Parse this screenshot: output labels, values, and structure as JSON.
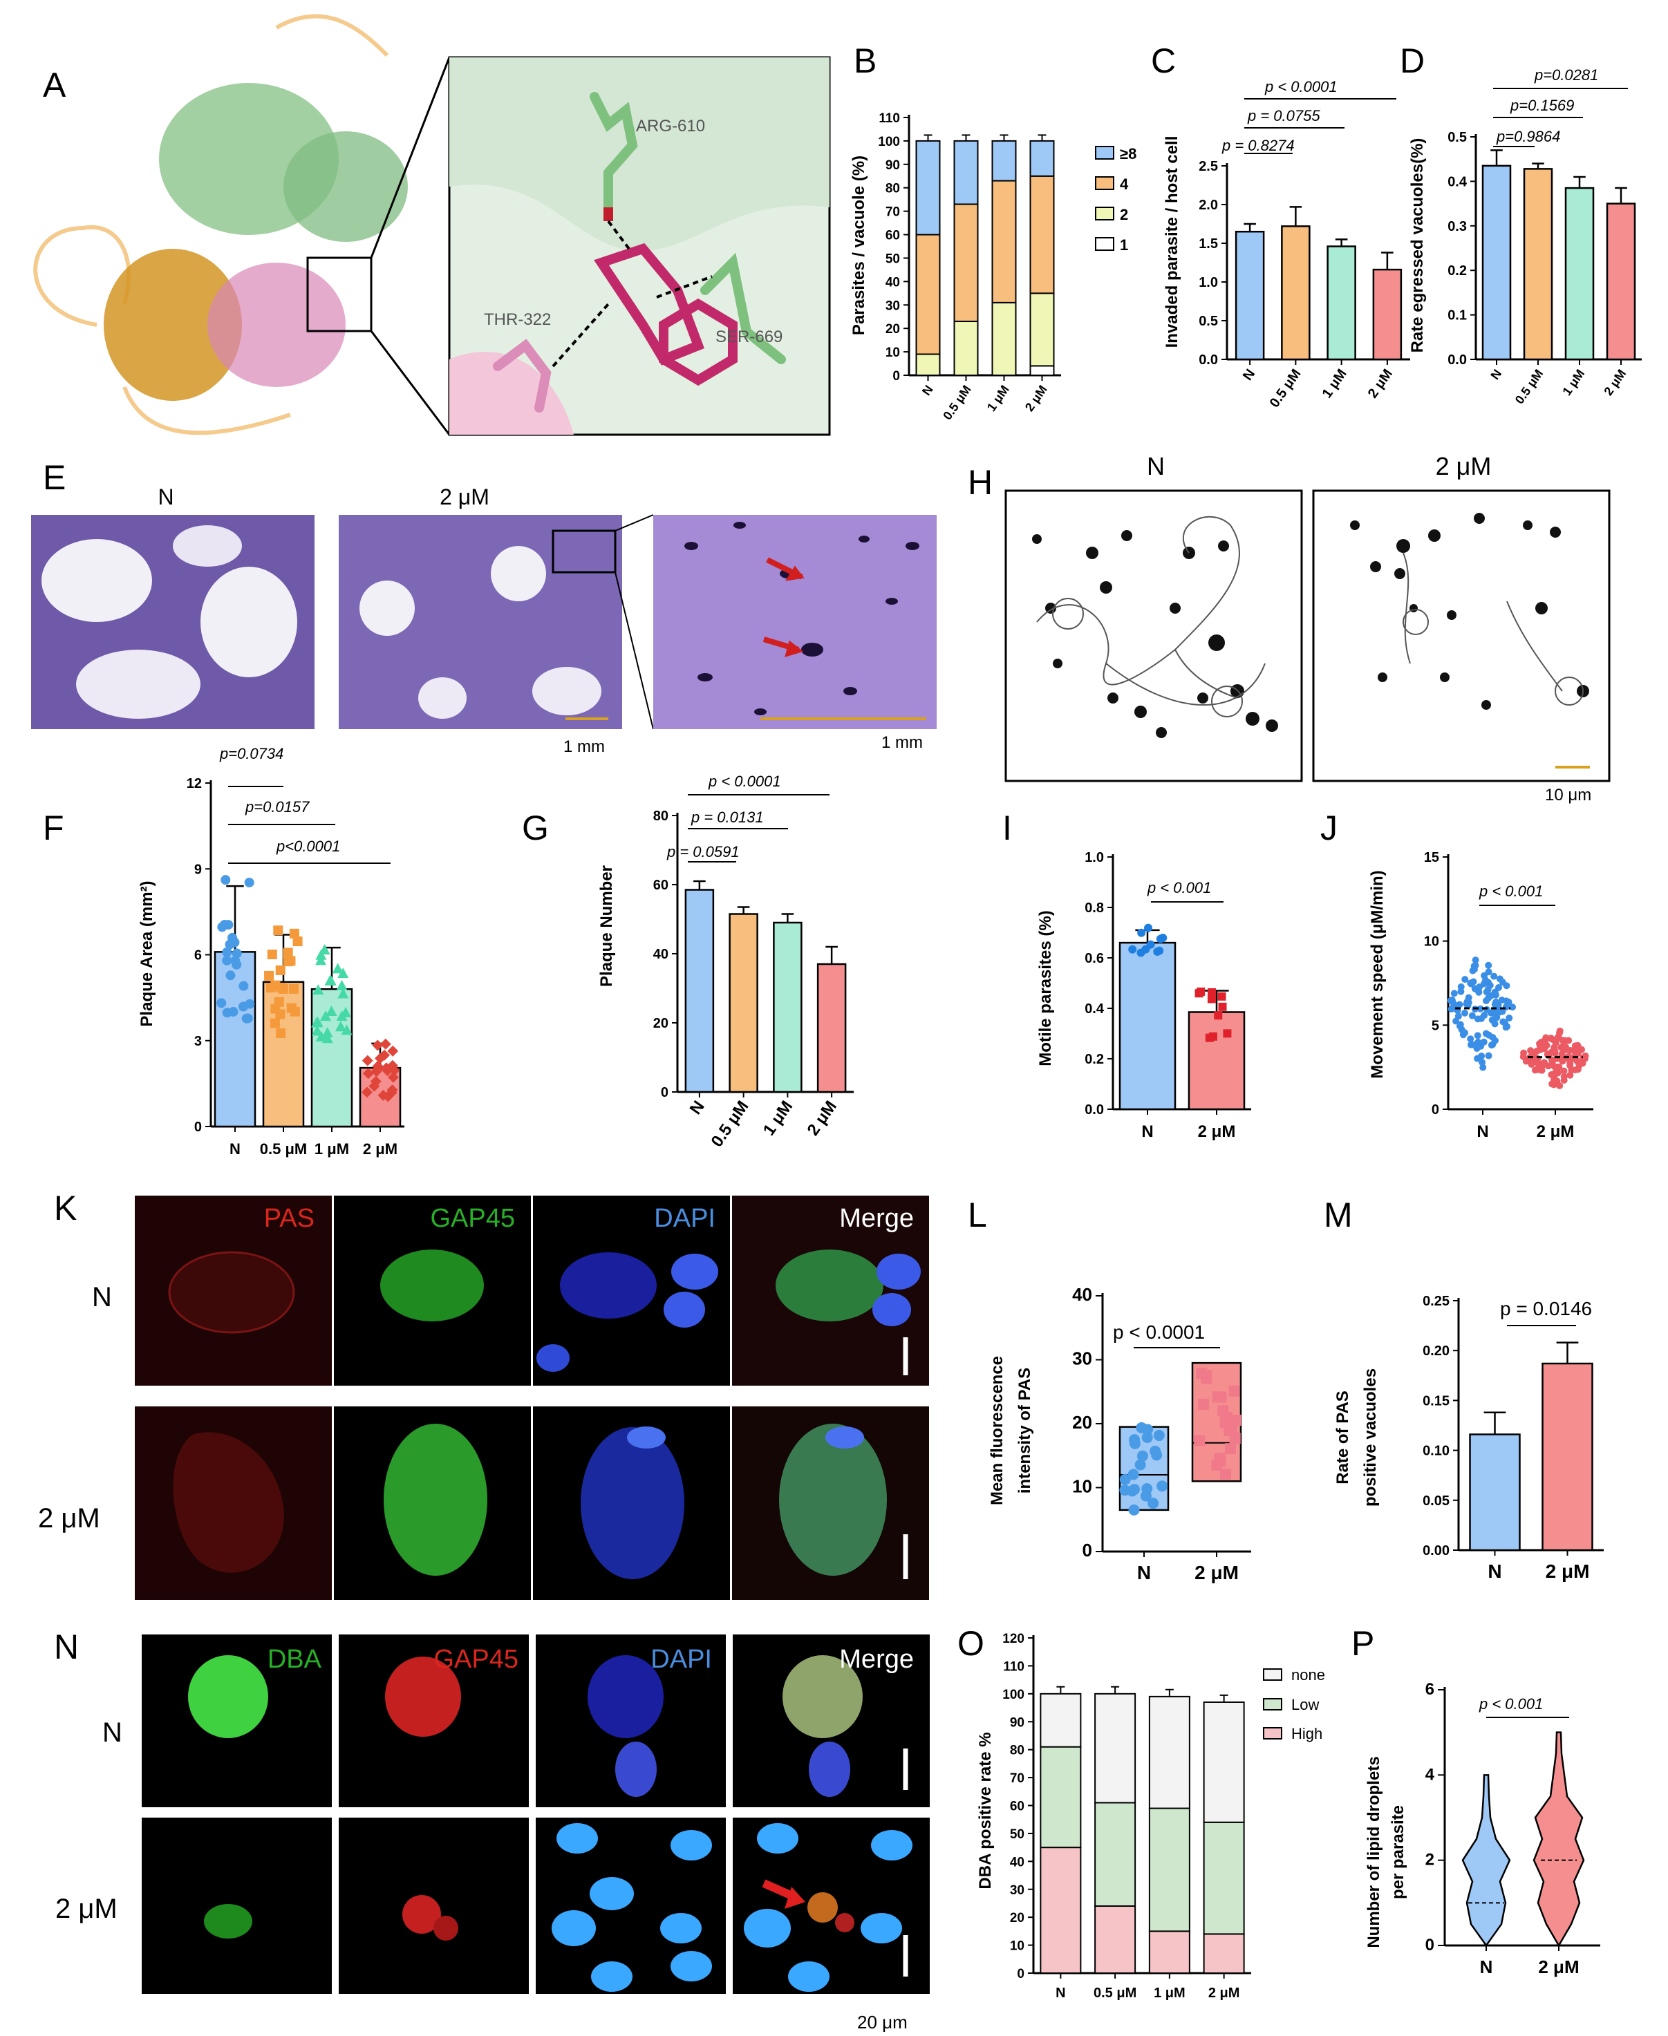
{
  "panels": {
    "A": {
      "letter": "A",
      "residues": [
        "ARG-610",
        "THR-322",
        "SER-669"
      ]
    },
    "B": {
      "letter": "B",
      "ylabel": "Parasites / vacuole (%)",
      "yticks": [
        "0",
        "10",
        "20",
        "30",
        "40",
        "50",
        "60",
        "70",
        "80",
        "90",
        "100",
        "110"
      ],
      "categories": [
        "N",
        "0.5 μM",
        "1 μM",
        "2 μM"
      ],
      "legend": [
        "≥8",
        "4",
        "2",
        "1"
      ]
    },
    "C": {
      "letter": "C",
      "ylabel": "Invaded parasite / host cell",
      "yticks": [
        "0.0",
        "0.5",
        "1.0",
        "1.5",
        "2.0",
        "2.5"
      ],
      "categories": [
        "N",
        "0.5 μM",
        "1 μM",
        "2 μM"
      ],
      "pvals": [
        "p = 0.8274",
        "p = 0.0755",
        "p < 0.0001"
      ]
    },
    "D": {
      "letter": "D",
      "ylabel": "Rate egressed vacuoles(%)",
      "yticks": [
        "0.0",
        "0.1",
        "0.2",
        "0.3",
        "0.4",
        "0.5"
      ],
      "categories": [
        "N",
        "0.5 μM",
        "1 μM",
        "2 μM"
      ],
      "pvals": [
        "p=0.9864",
        "p=0.1569",
        "p=0.0281"
      ]
    },
    "E": {
      "letter": "E",
      "titles": [
        "N",
        "2 μM"
      ],
      "scales": [
        "1 mm",
        "1 mm"
      ]
    },
    "F": {
      "letter": "F",
      "ylabel": "Plaque Area (mm²)",
      "yticks": [
        "0",
        "3",
        "6",
        "9",
        "12"
      ],
      "categories": [
        "N",
        "0.5 μM",
        "1 μM",
        "2 μM"
      ],
      "pvals": [
        "p=0.0734",
        "p=0.0157",
        "p<0.0001"
      ]
    },
    "G": {
      "letter": "G",
      "ylabel": "Plaque Number",
      "yticks": [
        "0",
        "20",
        "40",
        "60",
        "80"
      ],
      "categories": [
        "N",
        "0.5 μM",
        "1 μM",
        "2 μM"
      ],
      "pvals": [
        "p = 0.0591",
        "p = 0.0131",
        "p < 0.0001"
      ]
    },
    "H": {
      "letter": "H",
      "titles": [
        "N",
        "2 μM"
      ],
      "scale": "10 μm"
    },
    "I": {
      "letter": "I",
      "ylabel": "Motile parasites (%)",
      "yticks": [
        "0.0",
        "0.2",
        "0.4",
        "0.6",
        "0.8",
        "1.0"
      ],
      "categories": [
        "N",
        "2 μM"
      ],
      "pval": "p < 0.001"
    },
    "J": {
      "letter": "J",
      "ylabel": "Movement speed (μM/min)",
      "yticks": [
        "0",
        "5",
        "10",
        "15"
      ],
      "categories": [
        "N",
        "2 μM"
      ],
      "pval": "p < 0.001"
    },
    "K": {
      "letter": "K",
      "channels": [
        "PAS",
        "GAP45",
        "DAPI",
        "Merge"
      ],
      "rows": [
        "N",
        "2 μM"
      ]
    },
    "L": {
      "letter": "L",
      "ylabel1": "Mean fluorescence",
      "ylabel2": "intensity of PAS",
      "yticks": [
        "0",
        "10",
        "20",
        "30",
        "40"
      ],
      "categories": [
        "N",
        "2 μM"
      ],
      "pval": "p < 0.0001"
    },
    "M": {
      "letter": "M",
      "ylabel1": "Rate of PAS",
      "ylabel2": "positive vacuoles",
      "yticks": [
        "0.00",
        "0.05",
        "0.10",
        "0.15",
        "0.20",
        "0.25"
      ],
      "categories": [
        "N",
        "2 μM"
      ],
      "pval": "p = 0.0146"
    },
    "N": {
      "letter": "N",
      "channels": [
        "DBA",
        "GAP45",
        "DAPI",
        "Merge"
      ],
      "rows": [
        "N",
        "2 μM"
      ],
      "scale": "20 μm"
    },
    "O": {
      "letter": "O",
      "ylabel": "DBA positive rate %",
      "yticks": [
        "0",
        "10",
        "20",
        "30",
        "40",
        "50",
        "60",
        "70",
        "80",
        "90",
        "100",
        "110",
        "120"
      ],
      "categories": [
        "N",
        "0.5 μM",
        "1 μM",
        "2 μM"
      ],
      "legend": [
        "none",
        "Low",
        "High"
      ]
    },
    "P": {
      "letter": "P",
      "ylabel1": "Number of lipid droplets",
      "ylabel2": "per parasite",
      "yticks": [
        "0",
        "2",
        "4",
        "6"
      ],
      "categories": [
        "N",
        "2 μM"
      ],
      "pval": "p < 0.001"
    }
  },
  "colors": {
    "blue": "#9ec8f5",
    "orange": "#f8be7e",
    "green": "#a9ebd4",
    "red": "#f58f8f",
    "yellow": "#f0f6b5",
    "lightgreen": "#cfe8cd",
    "pink": "#f6c3c6",
    "grey": "#f3f3f3"
  },
  "chart_data": [
    {
      "panel": "B",
      "type": "bar",
      "stacked": true,
      "categories": [
        "N",
        "0.5 μM",
        "1 μM",
        "2 μM"
      ],
      "ylabel": "Parasites / vacuole (%)",
      "ylim": [
        0,
        110
      ],
      "series": [
        {
          "name": "1",
          "values": [
            0,
            0,
            0,
            4
          ]
        },
        {
          "name": "2",
          "values": [
            9,
            23,
            31,
            31
          ]
        },
        {
          "name": "4",
          "values": [
            51,
            50,
            52,
            50
          ]
        },
        {
          "name": "≥8",
          "values": [
            40,
            27,
            17,
            15
          ]
        }
      ]
    },
    {
      "panel": "C",
      "type": "bar",
      "categories": [
        "N",
        "0.5 μM",
        "1 μM",
        "2 μM"
      ],
      "ylabel": "Invaded parasite / host cell",
      "ylim": [
        0,
        2.5
      ],
      "values": [
        1.65,
        1.72,
        1.46,
        1.16
      ],
      "errors": [
        0.1,
        0.25,
        0.09,
        0.22
      ]
    },
    {
      "panel": "D",
      "type": "bar",
      "categories": [
        "N",
        "0.5 μM",
        "1 μM",
        "2 μM"
      ],
      "ylabel": "Rate egressed vacuoles(%)",
      "ylim": [
        0,
        0.5
      ],
      "values": [
        0.435,
        0.428,
        0.385,
        0.35
      ],
      "errors": [
        0.035,
        0.012,
        0.025,
        0.035
      ]
    },
    {
      "panel": "F",
      "type": "bar",
      "categories": [
        "N",
        "0.5 μM",
        "1 μM",
        "2 μM"
      ],
      "ylabel": "Plaque Area (mm²)",
      "ylim": [
        0,
        12
      ],
      "values": [
        6.1,
        5.05,
        4.8,
        2.05
      ],
      "errors": [
        2.3,
        1.65,
        1.45,
        0.85
      ]
    },
    {
      "panel": "G",
      "type": "bar",
      "categories": [
        "N",
        "0.5 μM",
        "1 μM",
        "2 μM"
      ],
      "ylabel": "Plaque Number",
      "ylim": [
        0,
        80
      ],
      "values": [
        58.5,
        51.5,
        49,
        37
      ],
      "errors": [
        2.5,
        2,
        2.5,
        5
      ]
    },
    {
      "panel": "I",
      "type": "bar",
      "categories": [
        "N",
        "2 μM"
      ],
      "ylabel": "Motile parasites (%)",
      "ylim": [
        0,
        1.0
      ],
      "values": [
        0.66,
        0.385
      ],
      "errors": [
        0.05,
        0.085
      ]
    },
    {
      "panel": "J",
      "type": "scatter",
      "categories": [
        "N",
        "2 μM"
      ],
      "ylabel": "Movement speed (μM/min)",
      "ylim": [
        0,
        15
      ],
      "means": [
        6.0,
        3.1
      ]
    },
    {
      "panel": "L",
      "type": "box",
      "categories": [
        "N",
        "2 μM"
      ],
      "ylabel": "Mean fluorescence intensity of PAS",
      "ylim": [
        0,
        40
      ],
      "box": [
        [
          6.5,
          12,
          19.5
        ],
        [
          11,
          17,
          29.5
        ]
      ]
    },
    {
      "panel": "M",
      "type": "bar",
      "categories": [
        "N",
        "2 μM"
      ],
      "ylabel": "Rate of PAS positive vacuoles",
      "ylim": [
        0,
        0.25
      ],
      "values": [
        0.116,
        0.187
      ],
      "errors": [
        0.022,
        0.021
      ]
    },
    {
      "panel": "O",
      "type": "bar",
      "stacked": true,
      "categories": [
        "N",
        "0.5 μM",
        "1 μM",
        "2 μM"
      ],
      "ylabel": "DBA positive rate %",
      "ylim": [
        0,
        120
      ],
      "series": [
        {
          "name": "High",
          "values": [
            45,
            24,
            15,
            14
          ]
        },
        {
          "name": "Low",
          "values": [
            36,
            37,
            44,
            40
          ]
        },
        {
          "name": "none",
          "values": [
            19,
            39,
            40,
            43
          ]
        }
      ]
    },
    {
      "panel": "P",
      "type": "violin",
      "categories": [
        "N",
        "2 μM"
      ],
      "ylabel": "Number of lipid droplets per parasite",
      "ylim": [
        0,
        6
      ],
      "medians": [
        1,
        2
      ]
    }
  ]
}
